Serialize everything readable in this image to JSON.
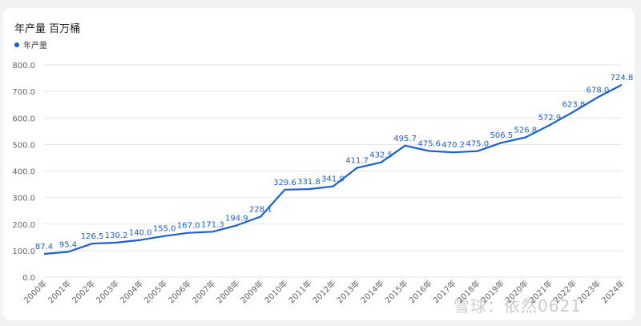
{
  "title": "年产量 百万桶",
  "colors": {
    "series": "#1a5fd6",
    "grid": "#e6e6e6",
    "axis": "#666666"
  },
  "watermark": "雪球：依然0621",
  "chart_data": {
    "type": "line",
    "title": "年产量 百万桶",
    "legend_position": "top-left",
    "grid": true,
    "ylim": [
      0,
      800
    ],
    "yticks": [
      "0.0",
      "100.0",
      "200.0",
      "300.0",
      "400.0",
      "500.0",
      "600.0",
      "700.0",
      "800.0"
    ],
    "categories": [
      "2000年",
      "2001年",
      "2002年",
      "2003年",
      "2004年",
      "2005年",
      "2006年",
      "2007年",
      "2008年",
      "2009年",
      "2010年",
      "2011年",
      "2012年",
      "2013年",
      "2014年",
      "2015年",
      "2016年",
      "2017年",
      "2018年",
      "2019年",
      "2020年",
      "2021年",
      "2022年",
      "2023年",
      "2024年"
    ],
    "series": [
      {
        "name": "年产量",
        "values": [
          87.4,
          95.4,
          126.5,
          130.2,
          140.0,
          155.0,
          167.0,
          171.3,
          194.9,
          228.1,
          329.6,
          331.8,
          341.9,
          411.7,
          432.5,
          495.7,
          475.6,
          470.2,
          475.0,
          506.5,
          526.8,
          572.9,
          623.8,
          678.0,
          724.8
        ],
        "labels": [
          "87.4",
          "95.4",
          "126.5",
          "130.2",
          "140.0",
          "155.0",
          "167.0",
          "171.3",
          "194.9",
          "228.1",
          "329.6",
          "331.8",
          "341.9",
          "411.7",
          "432.5",
          "495.7",
          "475.6",
          "470.2",
          "475.0",
          "506.5",
          "526.8",
          "572.9",
          "623.8",
          "678.0",
          "724.8"
        ]
      }
    ]
  }
}
